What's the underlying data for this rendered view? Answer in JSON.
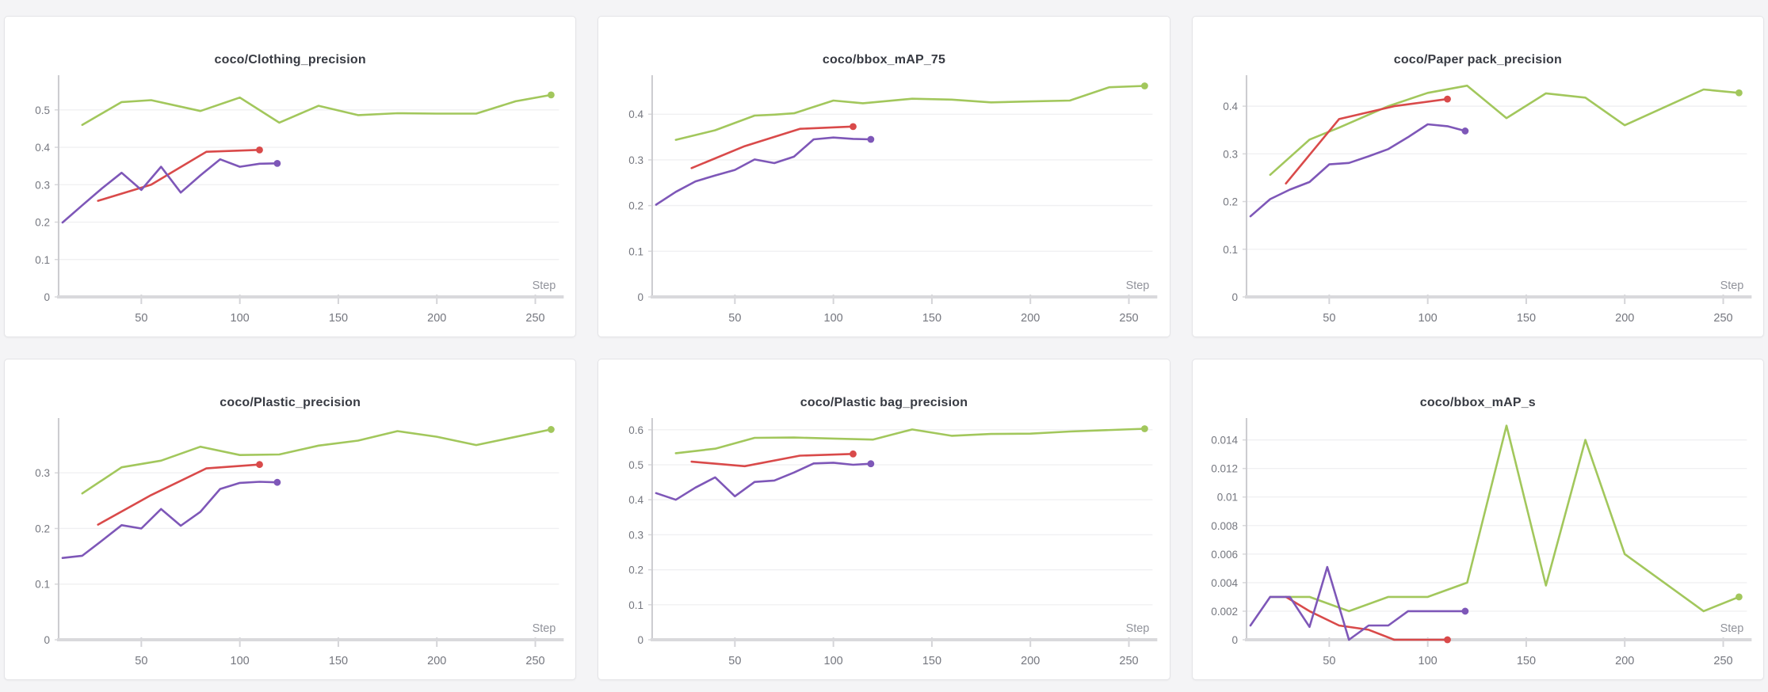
{
  "page": {
    "background_color": "#f4f4f6",
    "panel_background": "#ffffff",
    "panel_border_color": "#e4e4e7",
    "title_color": "#373a42",
    "tick_label_color": "#75777f",
    "axis_label_color": "#91939b",
    "grid_color": "#f0f0f2",
    "axis_line_color": "#d9d9dc"
  },
  "series_colors": {
    "green": "#a2c75c",
    "red": "#d94a4a",
    "purple": "#7e57b8"
  },
  "chart_data": [
    {
      "type": "line",
      "title": "coco/Clothing_precision",
      "xlabel": "Step",
      "legend": "none",
      "grid": "horizontal",
      "xlim": [
        8,
        262
      ],
      "ylim": [
        0,
        0.58
      ],
      "xticks": [
        50,
        100,
        150,
        200,
        250
      ],
      "yticks": [
        0,
        0.1,
        0.2,
        0.3,
        0.4,
        0.5
      ],
      "series": [
        {
          "name": "green",
          "color": "#a2c75c",
          "x": [
            20,
            40,
            55,
            80,
            100,
            120,
            140,
            160,
            180,
            200,
            220,
            240,
            258
          ],
          "y": [
            0.46,
            0.521,
            0.526,
            0.497,
            0.533,
            0.466,
            0.511,
            0.486,
            0.491,
            0.49,
            0.49,
            0.523,
            0.54
          ]
        },
        {
          "name": "red",
          "color": "#d94a4a",
          "x": [
            28,
            55,
            83,
            110
          ],
          "y": [
            0.257,
            0.3,
            0.388,
            0.393
          ]
        },
        {
          "name": "purple",
          "color": "#7e57b8",
          "x": [
            10,
            20,
            30,
            40,
            50,
            60,
            70,
            80,
            90,
            100,
            110,
            119
          ],
          "y": [
            0.199,
            0.245,
            0.29,
            0.332,
            0.286,
            0.348,
            0.279,
            0.325,
            0.368,
            0.348,
            0.356,
            0.357
          ]
        }
      ]
    },
    {
      "type": "line",
      "title": "coco/bbox_mAP_75",
      "xlabel": "Step",
      "legend": "none",
      "grid": "horizontal",
      "xlim": [
        8,
        262
      ],
      "ylim": [
        0,
        0.475
      ],
      "xticks": [
        50,
        100,
        150,
        200,
        250
      ],
      "yticks": [
        0,
        0.1,
        0.2,
        0.3,
        0.4
      ],
      "series": [
        {
          "name": "green",
          "color": "#a2c75c",
          "x": [
            20,
            40,
            60,
            70,
            80,
            100,
            115,
            140,
            160,
            180,
            200,
            220,
            240,
            258
          ],
          "y": [
            0.344,
            0.365,
            0.397,
            0.399,
            0.402,
            0.43,
            0.424,
            0.434,
            0.432,
            0.426,
            0.428,
            0.43,
            0.459,
            0.462
          ]
        },
        {
          "name": "red",
          "color": "#d94a4a",
          "x": [
            28,
            55,
            83,
            110
          ],
          "y": [
            0.282,
            0.33,
            0.368,
            0.373
          ]
        },
        {
          "name": "purple",
          "color": "#7e57b8",
          "x": [
            10,
            20,
            30,
            40,
            50,
            60,
            70,
            80,
            90,
            100,
            110,
            119
          ],
          "y": [
            0.202,
            0.23,
            0.253,
            0.266,
            0.278,
            0.301,
            0.293,
            0.307,
            0.345,
            0.349,
            0.346,
            0.345
          ]
        }
      ]
    },
    {
      "type": "line",
      "title": "coco/Paper pack_precision",
      "xlabel": "Step",
      "legend": "none",
      "grid": "horizontal",
      "xlim": [
        8,
        262
      ],
      "ylim": [
        0,
        0.455
      ],
      "xticks": [
        50,
        100,
        150,
        200,
        250
      ],
      "yticks": [
        0,
        0.1,
        0.2,
        0.3,
        0.4
      ],
      "series": [
        {
          "name": "green",
          "color": "#a2c75c",
          "x": [
            20,
            40,
            55,
            80,
            100,
            120,
            140,
            160,
            180,
            200,
            240,
            258
          ],
          "y": [
            0.256,
            0.33,
            0.355,
            0.4,
            0.428,
            0.443,
            0.375,
            0.427,
            0.418,
            0.36,
            0.435,
            0.428
          ]
        },
        {
          "name": "red",
          "color": "#d94a4a",
          "x": [
            28,
            55,
            83,
            110
          ],
          "y": [
            0.238,
            0.373,
            0.4,
            0.415
          ]
        },
        {
          "name": "purple",
          "color": "#7e57b8",
          "x": [
            10,
            20,
            30,
            40,
            50,
            60,
            70,
            80,
            90,
            100,
            110,
            119
          ],
          "y": [
            0.169,
            0.205,
            0.225,
            0.241,
            0.278,
            0.281,
            0.295,
            0.31,
            0.335,
            0.362,
            0.358,
            0.348
          ]
        }
      ]
    },
    {
      "type": "line",
      "title": "coco/Plastic_precision",
      "xlabel": "Step",
      "legend": "none",
      "grid": "horizontal",
      "xlim": [
        8,
        262
      ],
      "ylim": [
        0,
        0.39
      ],
      "xticks": [
        50,
        100,
        150,
        200,
        250
      ],
      "yticks": [
        0,
        0.1,
        0.2,
        0.3
      ],
      "series": [
        {
          "name": "green",
          "color": "#a2c75c",
          "x": [
            20,
            40,
            60,
            80,
            100,
            120,
            140,
            160,
            180,
            200,
            220,
            258
          ],
          "y": [
            0.263,
            0.31,
            0.322,
            0.347,
            0.332,
            0.333,
            0.349,
            0.358,
            0.375,
            0.365,
            0.35,
            0.378
          ]
        },
        {
          "name": "red",
          "color": "#d94a4a",
          "x": [
            28,
            55,
            83,
            110
          ],
          "y": [
            0.207,
            0.26,
            0.308,
            0.315
          ]
        },
        {
          "name": "purple",
          "color": "#7e57b8",
          "x": [
            10,
            20,
            30,
            40,
            50,
            60,
            70,
            80,
            90,
            100,
            110,
            119
          ],
          "y": [
            0.147,
            0.151,
            0.178,
            0.206,
            0.2,
            0.235,
            0.205,
            0.23,
            0.271,
            0.282,
            0.284,
            0.283
          ]
        }
      ]
    },
    {
      "type": "line",
      "title": "coco/Plastic bag_precision",
      "xlabel": "Step",
      "legend": "none",
      "grid": "horizontal",
      "xlim": [
        8,
        262
      ],
      "ylim": [
        0,
        0.62
      ],
      "xticks": [
        50,
        100,
        150,
        200,
        250
      ],
      "yticks": [
        0,
        0.1,
        0.2,
        0.3,
        0.4,
        0.5,
        0.6
      ],
      "series": [
        {
          "name": "green",
          "color": "#a2c75c",
          "x": [
            20,
            40,
            60,
            80,
            100,
            120,
            140,
            160,
            180,
            200,
            220,
            258
          ],
          "y": [
            0.533,
            0.546,
            0.577,
            0.578,
            0.575,
            0.572,
            0.601,
            0.583,
            0.588,
            0.589,
            0.595,
            0.603
          ]
        },
        {
          "name": "red",
          "color": "#d94a4a",
          "x": [
            28,
            55,
            83,
            110
          ],
          "y": [
            0.509,
            0.496,
            0.526,
            0.531
          ]
        },
        {
          "name": "purple",
          "color": "#7e57b8",
          "x": [
            10,
            20,
            30,
            40,
            50,
            60,
            70,
            80,
            90,
            100,
            110,
            119
          ],
          "y": [
            0.419,
            0.4,
            0.435,
            0.464,
            0.41,
            0.451,
            0.455,
            0.478,
            0.504,
            0.506,
            0.5,
            0.503
          ]
        }
      ]
    },
    {
      "type": "line",
      "title": "coco/bbox_mAP_s",
      "xlabel": "Step",
      "legend": "none",
      "grid": "horizontal",
      "xlim": [
        8,
        262
      ],
      "ylim": [
        0,
        0.0152
      ],
      "xticks": [
        50,
        100,
        150,
        200,
        250
      ],
      "yticks": [
        0,
        0.002,
        0.004,
        0.006,
        0.008,
        0.01,
        0.012,
        0.014
      ],
      "series": [
        {
          "name": "green",
          "color": "#a2c75c",
          "x": [
            20,
            30,
            40,
            50,
            60,
            80,
            100,
            120,
            140,
            160,
            180,
            200,
            240,
            258
          ],
          "y": [
            0.003,
            0.003,
            0.003,
            0.0025,
            0.002,
            0.003,
            0.003,
            0.004,
            0.015,
            0.0038,
            0.014,
            0.006,
            0.002,
            0.003
          ]
        },
        {
          "name": "red",
          "color": "#d94a4a",
          "x": [
            28,
            40,
            55,
            70,
            83,
            110
          ],
          "y": [
            0.003,
            0.002,
            0.001,
            0.0007,
            0.0,
            0.0
          ]
        },
        {
          "name": "purple",
          "color": "#7e57b8",
          "x": [
            10,
            20,
            30,
            40,
            49,
            60,
            70,
            80,
            90,
            100,
            110,
            119
          ],
          "y": [
            0.001,
            0.003,
            0.003,
            0.0009,
            0.0051,
            0.0,
            0.001,
            0.001,
            0.002,
            0.002,
            0.002,
            0.002
          ]
        }
      ]
    }
  ]
}
